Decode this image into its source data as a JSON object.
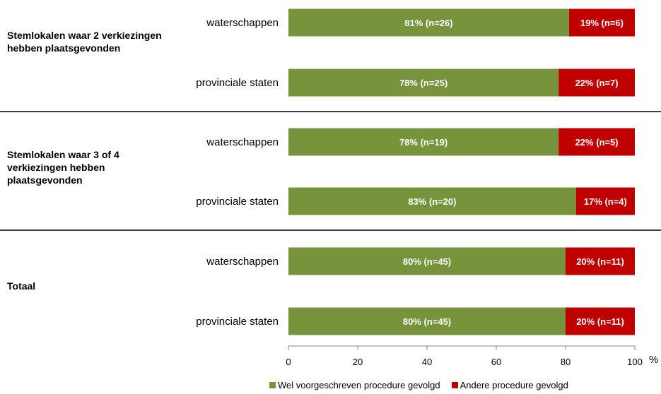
{
  "chart_data": {
    "type": "bar",
    "orientation": "horizontal",
    "stacked": true,
    "x_unit": "%",
    "xlim": [
      0,
      100
    ],
    "x_ticks": [
      "0",
      "20",
      "40",
      "60",
      "80",
      "100"
    ],
    "groups": [
      {
        "label": "Stemlokalen waar 2 verkiezingen hebben plaatsgevonden",
        "rows": [
          {
            "category": "waterschappen",
            "values": [
              81,
              19
            ],
            "labels": [
              "81% (n=26)",
              "19% (n=6)"
            ]
          },
          {
            "category": "provinciale staten",
            "values": [
              78,
              22
            ],
            "labels": [
              "78% (n=25)",
              "22% (n=7)"
            ]
          }
        ]
      },
      {
        "label": "Stemlokalen waar 3 of 4 verkiezingen hebben plaatsgevonden",
        "rows": [
          {
            "category": "waterschappen",
            "values": [
              78,
              22
            ],
            "labels": [
              "78% (n=19)",
              "22% (n=5)"
            ]
          },
          {
            "category": "provinciale staten",
            "values": [
              83,
              17
            ],
            "labels": [
              "83% (n=20)",
              "17% (n=4)"
            ]
          }
        ]
      },
      {
        "label": "Totaal",
        "rows": [
          {
            "category": "waterschappen",
            "values": [
              80,
              20
            ],
            "labels": [
              "80% (n=45)",
              "20% (n=11)"
            ]
          },
          {
            "category": "provinciale staten",
            "values": [
              80,
              20
            ],
            "labels": [
              "80% (n=45)",
              "20% (n=11)"
            ]
          }
        ]
      }
    ],
    "series": [
      {
        "name": "Wel voorgeschreven procedure gevolgd",
        "color": "#77933c"
      },
      {
        "name": "Andere procedure gevolgd",
        "color": "#c00000"
      }
    ],
    "legend_position": "bottom",
    "grid": false
  }
}
